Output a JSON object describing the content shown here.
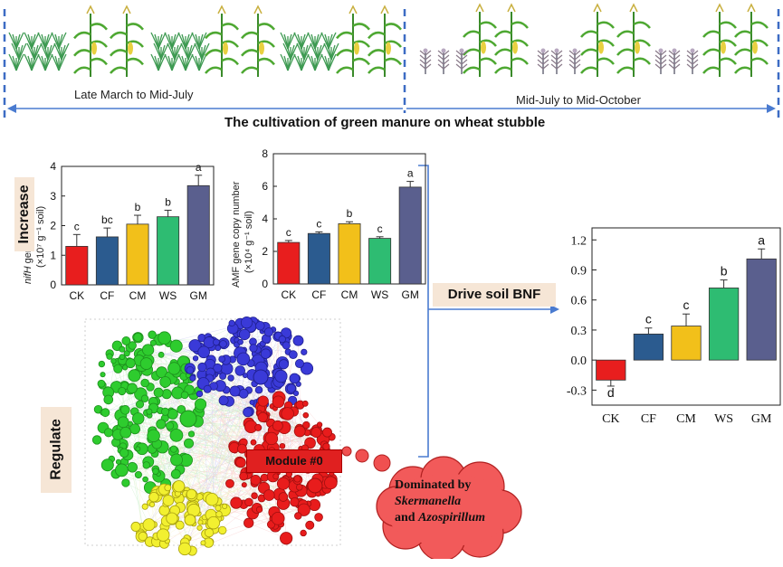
{
  "header": {
    "period1": "Late March to Mid-July",
    "period2": "Mid-July to Mid-October",
    "title": "The cultivation of green manure on wheat stubble"
  },
  "tags": {
    "increase": "Increase",
    "drive": "Drive soil BNF",
    "regulate": "Regulate"
  },
  "network": {
    "module_label": "Module #0",
    "cloud_line1": "Dominated by",
    "cloud_line2": "Skermanella",
    "cloud_line3_and": "and ",
    "cloud_line3_genus": "Azospirillum"
  },
  "chart_data": [
    {
      "type": "bar",
      "ylabel_italic": "nifH",
      "ylabel_rest": " gene copy number",
      "ylabel_unit": "(×10⁷ g⁻¹ soil)",
      "ylim": [
        0,
        4
      ],
      "yticks": [
        "0",
        "1",
        "2",
        "3",
        "4"
      ],
      "categories": [
        "CK",
        "CF",
        "CM",
        "WS",
        "GM"
      ],
      "values": [
        1.3,
        1.62,
        2.05,
        2.3,
        3.35
      ],
      "errors": [
        0.4,
        0.3,
        0.3,
        0.22,
        0.35
      ],
      "letters": [
        "c",
        "bc",
        "b",
        "b",
        "a"
      ],
      "colors": [
        "#e81e1e",
        "#2b5b8f",
        "#f2c01a",
        "#2ebc72",
        "#5a5f8e"
      ]
    },
    {
      "type": "bar",
      "ylabel": "AMF gene copy number",
      "ylabel_unit": "(×10⁴ g⁻¹ soil)",
      "ylim": [
        0,
        8
      ],
      "yticks": [
        "0",
        "2",
        "4",
        "6",
        "8"
      ],
      "categories": [
        "CK",
        "CF",
        "CM",
        "WS",
        "GM"
      ],
      "values": [
        2.55,
        3.1,
        3.7,
        2.8,
        5.95
      ],
      "errors": [
        0.12,
        0.1,
        0.12,
        0.1,
        0.35
      ],
      "letters": [
        "c",
        "c",
        "b",
        "c",
        "a"
      ],
      "colors": [
        "#e81e1e",
        "#2b5b8f",
        "#f2c01a",
        "#2ebc72",
        "#5a5f8e"
      ]
    },
    {
      "type": "bar",
      "ylim": [
        -0.45,
        1.32
      ],
      "ytick_values": [
        -0.3,
        0.0,
        0.3,
        0.6,
        0.9,
        1.2
      ],
      "yticks": [
        "-0.3",
        "0.0",
        "0.3",
        "0.6",
        "0.9",
        "1.2"
      ],
      "categories": [
        "CK",
        "CF",
        "CM",
        "WS",
        "GM"
      ],
      "values": [
        -0.2,
        0.26,
        0.34,
        0.72,
        1.01
      ],
      "errors": [
        0.06,
        0.06,
        0.12,
        0.08,
        0.1
      ],
      "letters": [
        "d",
        "c",
        "c",
        "b",
        "a"
      ],
      "colors": [
        "#e81e1e",
        "#2b5b8f",
        "#f2c01a",
        "#2ebc72",
        "#5a5f8e"
      ]
    }
  ]
}
